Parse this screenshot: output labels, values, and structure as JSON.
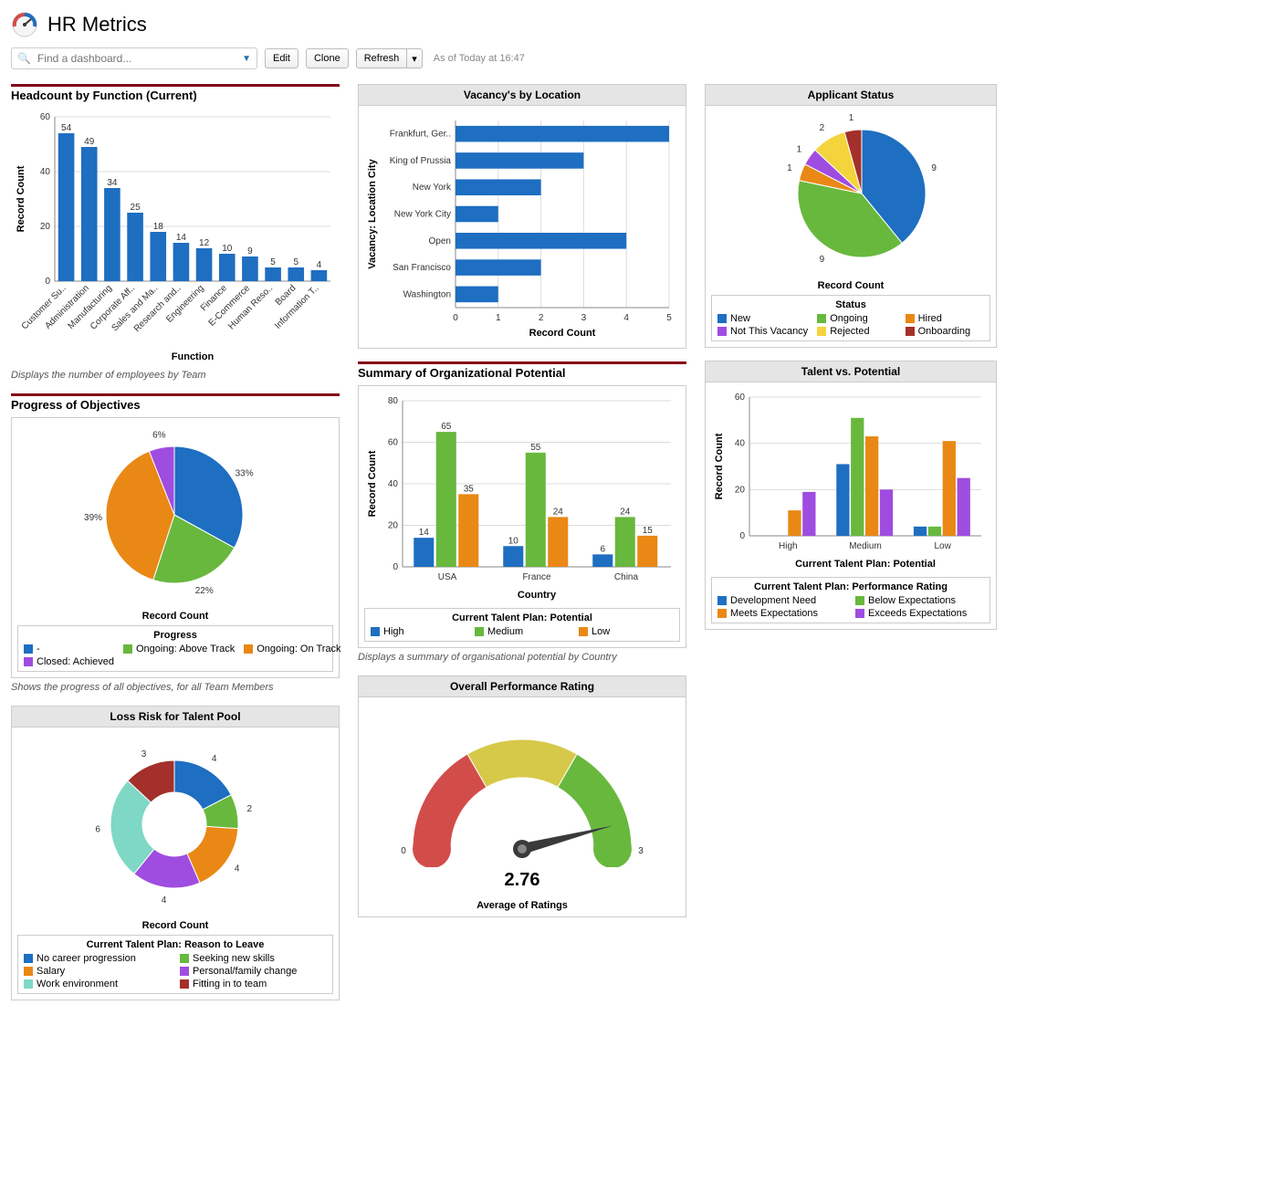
{
  "page": {
    "title": "HR Metrics",
    "search_placeholder": "Find a dashboard...",
    "buttons": {
      "edit": "Edit",
      "clone": "Clone",
      "refresh": "Refresh"
    },
    "timestamp": "As of Today at 16:47"
  },
  "colors": {
    "blue": "#1e6ec1",
    "green": "#68b83e",
    "orange": "#e98815",
    "purple": "#9f4ce0",
    "yellow": "#f4d43c",
    "darkred": "#a3302a",
    "teal": "#5fd0c4",
    "mint": "#7ed8c5",
    "rule": "#850017",
    "grid": "#dcdcdc",
    "text": "#333333"
  },
  "headcount": {
    "title": "Headcount by Function (Current)",
    "caption": "Displays the number of employees by Team",
    "type": "bar",
    "xlabel": "Function",
    "ylabel": "Record Count",
    "ymax": 60,
    "ytick_step": 20,
    "bar_color": "#1e6ec1",
    "categories": [
      "Customer Su..",
      "Administration",
      "Manufacturing",
      "Corporate Aff..",
      "Sales and Ma..",
      "Research and..",
      "Engineering",
      "Finance",
      "E-Commerce",
      "Human Reso..",
      "Board",
      "Information T.."
    ],
    "values": [
      54,
      49,
      34,
      25,
      18,
      14,
      12,
      10,
      9,
      5,
      5,
      4
    ]
  },
  "objectives": {
    "title": "Progress of Objectives",
    "caption": "Shows the progress of all objectives, for all Team Members",
    "type": "pie",
    "rc_label": "Record Count",
    "legend_title": "Progress",
    "slices": [
      {
        "label": "-",
        "pct": 33,
        "color": "#1e6ec1"
      },
      {
        "label": "Ongoing: Above Track",
        "pct": 22,
        "color": "#68b83e"
      },
      {
        "label": "Ongoing: On Track",
        "pct": 39,
        "color": "#e98815"
      },
      {
        "label": "Closed: Achieved",
        "pct": 6,
        "color": "#9f4ce0"
      }
    ]
  },
  "loss_risk": {
    "title": "Loss Risk for Talent Pool",
    "type": "donut",
    "rc_label": "Record Count",
    "legend_title": "Current Talent Plan: Reason to Leave",
    "slices": [
      {
        "label": "No career progression",
        "value": 4,
        "color": "#1e6ec1"
      },
      {
        "label": "Seeking new skills",
        "value": 2,
        "color": "#68b83e"
      },
      {
        "label": "Salary",
        "value": 4,
        "color": "#e98815"
      },
      {
        "label": "Personal/family change",
        "value": 4,
        "color": "#9f4ce0"
      },
      {
        "label": "Work environment",
        "value": 6,
        "color": "#7ed8c5"
      },
      {
        "label": "Fitting in to team",
        "value": 3,
        "color": "#a3302a"
      }
    ]
  },
  "vacancies": {
    "title": "Vacancy's by Location",
    "type": "hbar",
    "xlabel": "Record Count",
    "ylabel": "Vacancy: Location City",
    "xmax": 5,
    "xtick_step": 1,
    "bar_color": "#1e6ec1",
    "items": [
      {
        "label": "Frankfurt, Ger..",
        "value": 5
      },
      {
        "label": "King of Prussia",
        "value": 3
      },
      {
        "label": "New York",
        "value": 2
      },
      {
        "label": "New York City",
        "value": 1
      },
      {
        "label": "Open",
        "value": 4
      },
      {
        "label": "San Francisco",
        "value": 2
      },
      {
        "label": "Washington",
        "value": 1
      }
    ]
  },
  "org_potential": {
    "title": "Summary of Organizational Potential",
    "caption": "Displays a summary of organisational potential by Country",
    "type": "grouped-bar",
    "xlabel": "Country",
    "ylabel": "Record Count",
    "ymax": 80,
    "ytick_step": 20,
    "legend_title": "Current Talent Plan: Potential",
    "series_labels": [
      "High",
      "Medium",
      "Low"
    ],
    "series_colors": [
      "#1e6ec1",
      "#68b83e",
      "#e98815"
    ],
    "groups": [
      {
        "name": "USA",
        "values": [
          14,
          65,
          35
        ]
      },
      {
        "name": "France",
        "values": [
          10,
          55,
          24
        ]
      },
      {
        "name": "China",
        "values": [
          6,
          24,
          15
        ]
      }
    ]
  },
  "overall_rating": {
    "title": "Overall Performance Rating",
    "type": "gauge",
    "min": 0,
    "max": 3,
    "value": 2.76,
    "value_display": "2.76",
    "sub_label": "Average of Ratings",
    "zones": [
      {
        "from": 0,
        "to": 1,
        "color": "#d24d4a"
      },
      {
        "from": 1,
        "to": 2,
        "color": "#d6c94a"
      },
      {
        "from": 2,
        "to": 3,
        "color": "#68b83e"
      }
    ]
  },
  "applicant_status": {
    "title": "Applicant Status",
    "type": "pie",
    "rc_label": "Record Count",
    "legend_title": "Status",
    "slices": [
      {
        "label": "New",
        "value": 9,
        "color": "#1e6ec1"
      },
      {
        "label": "Ongoing",
        "value": 9,
        "color": "#68b83e"
      },
      {
        "label": "Hired",
        "value": 1,
        "color": "#e98815"
      },
      {
        "label": "Not This Vacancy",
        "value": 1,
        "color": "#9f4ce0"
      },
      {
        "label": "Rejected",
        "value": 2,
        "color": "#f4d43c"
      },
      {
        "label": "Onboarding",
        "value": 1,
        "color": "#a3302a"
      }
    ]
  },
  "talent_potential": {
    "title": "Talent vs. Potential",
    "type": "grouped-bar",
    "xlabel": "Current Talent Plan: Potential",
    "ylabel": "Record Count",
    "legend_title": "Current Talent Plan: Performance Rating",
    "ymax": 60,
    "ytick_step": 20,
    "series_labels": [
      "Development Need",
      "Below Expectations",
      "Meets Expectations",
      "Exceeds Expectations"
    ],
    "series_colors": [
      "#1e6ec1",
      "#68b83e",
      "#e98815",
      "#9f4ce0"
    ],
    "groups": [
      {
        "name": "High",
        "values": [
          0,
          0,
          11,
          19
        ]
      },
      {
        "name": "Medium",
        "values": [
          31,
          51,
          43,
          20
        ]
      },
      {
        "name": "Low",
        "values": [
          4,
          4,
          41,
          25
        ]
      }
    ]
  }
}
